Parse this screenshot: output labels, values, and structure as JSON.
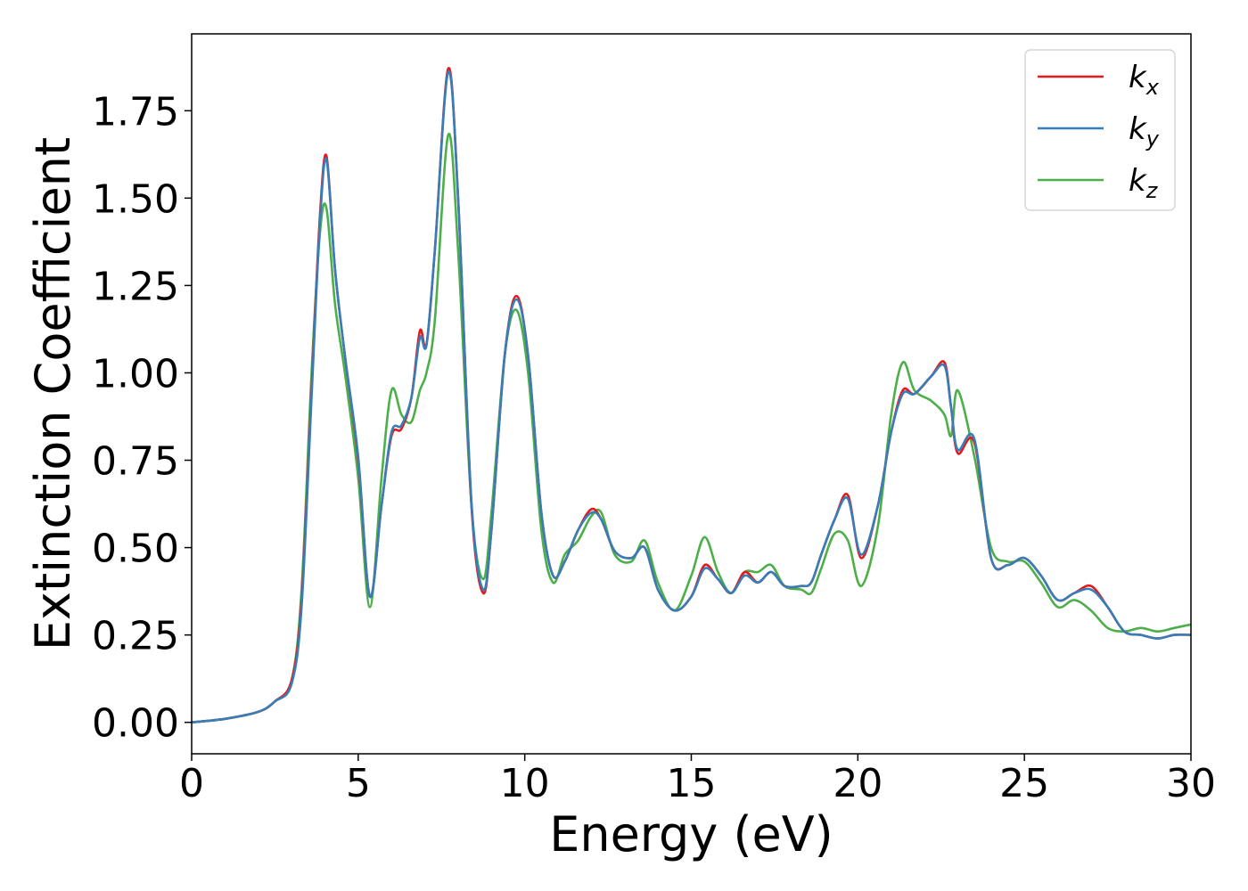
{
  "chart_data": {
    "type": "line",
    "xlabel": "Energy (eV)",
    "ylabel": "Extinction Coefficient",
    "xlim": [
      0,
      30
    ],
    "ylim": [
      -0.09,
      1.97
    ],
    "xticks": [
      0,
      5,
      10,
      15,
      20,
      25,
      30
    ],
    "xtick_labels": [
      "0",
      "5",
      "10",
      "15",
      "20",
      "25",
      "30"
    ],
    "yticks": [
      0.0,
      0.25,
      0.5,
      0.75,
      1.0,
      1.25,
      1.5,
      1.75
    ],
    "ytick_labels": [
      "0.00",
      "0.25",
      "0.50",
      "0.75",
      "1.00",
      "1.25",
      "1.50",
      "1.75"
    ],
    "grid": false,
    "legend_position": "top-right",
    "series": [
      {
        "name": "k_x",
        "label_main": "k",
        "label_sub": "x",
        "color": "#e41a1c",
        "x": [
          0,
          1,
          2,
          2.5,
          3,
          3.3,
          3.6,
          3.85,
          4.05,
          4.3,
          4.6,
          5.0,
          5.35,
          5.7,
          6.0,
          6.3,
          6.6,
          6.85,
          7.05,
          7.3,
          7.7,
          8.0,
          8.4,
          8.75,
          9.0,
          9.4,
          9.75,
          10.1,
          10.5,
          10.85,
          11.2,
          11.6,
          12.0,
          12.3,
          12.7,
          13.2,
          13.6,
          14.0,
          14.5,
          15.0,
          15.4,
          15.8,
          16.2,
          16.6,
          17.0,
          17.4,
          17.8,
          18.3,
          18.6,
          18.9,
          19.3,
          19.7,
          20.1,
          20.6,
          21.0,
          21.35,
          21.7,
          22.2,
          22.6,
          22.8,
          23.0,
          23.5,
          24.0,
          24.5,
          25.0,
          25.5,
          26.0,
          26.5,
          27.0,
          27.5,
          28.0,
          28.5,
          29.0,
          29.5,
          30.0
        ],
        "y": [
          0.0,
          0.01,
          0.03,
          0.06,
          0.12,
          0.35,
          0.95,
          1.45,
          1.62,
          1.3,
          1.05,
          0.75,
          0.36,
          0.62,
          0.82,
          0.84,
          0.93,
          1.12,
          1.08,
          1.35,
          1.87,
          1.5,
          0.62,
          0.37,
          0.55,
          1.05,
          1.22,
          1.05,
          0.6,
          0.42,
          0.46,
          0.55,
          0.61,
          0.58,
          0.49,
          0.47,
          0.5,
          0.38,
          0.32,
          0.36,
          0.45,
          0.41,
          0.37,
          0.43,
          0.4,
          0.43,
          0.39,
          0.39,
          0.4,
          0.48,
          0.58,
          0.65,
          0.47,
          0.62,
          0.83,
          0.95,
          0.94,
          0.99,
          1.03,
          0.9,
          0.77,
          0.8,
          0.47,
          0.45,
          0.47,
          0.42,
          0.35,
          0.37,
          0.39,
          0.33,
          0.26,
          0.25,
          0.24,
          0.25,
          0.25
        ]
      },
      {
        "name": "k_y",
        "label_main": "k",
        "label_sub": "y",
        "color": "#377eb8",
        "x": [
          0,
          1,
          2,
          2.5,
          3,
          3.3,
          3.6,
          3.85,
          4.05,
          4.3,
          4.6,
          5.0,
          5.35,
          5.7,
          6.0,
          6.3,
          6.6,
          6.85,
          7.05,
          7.3,
          7.7,
          8.0,
          8.4,
          8.75,
          9.0,
          9.4,
          9.75,
          10.1,
          10.5,
          10.85,
          11.2,
          11.6,
          12.0,
          12.3,
          12.7,
          13.2,
          13.6,
          14.0,
          14.5,
          15.0,
          15.4,
          15.8,
          16.2,
          16.6,
          17.0,
          17.4,
          17.8,
          18.3,
          18.6,
          18.9,
          19.3,
          19.7,
          20.1,
          20.6,
          21.0,
          21.35,
          21.7,
          22.2,
          22.6,
          22.8,
          23.0,
          23.5,
          24.0,
          24.5,
          25.0,
          25.5,
          26.0,
          26.5,
          27.0,
          27.5,
          28.0,
          28.5,
          29.0,
          29.5,
          30.0
        ],
        "y": [
          0.0,
          0.01,
          0.03,
          0.06,
          0.11,
          0.33,
          0.93,
          1.43,
          1.61,
          1.3,
          1.05,
          0.76,
          0.36,
          0.62,
          0.83,
          0.85,
          0.93,
          1.1,
          1.08,
          1.35,
          1.86,
          1.5,
          0.63,
          0.38,
          0.55,
          1.05,
          1.21,
          1.05,
          0.6,
          0.42,
          0.46,
          0.55,
          0.6,
          0.58,
          0.49,
          0.47,
          0.5,
          0.38,
          0.32,
          0.36,
          0.44,
          0.41,
          0.37,
          0.42,
          0.4,
          0.43,
          0.39,
          0.39,
          0.4,
          0.48,
          0.58,
          0.64,
          0.48,
          0.62,
          0.83,
          0.94,
          0.94,
          0.99,
          1.02,
          0.9,
          0.78,
          0.81,
          0.47,
          0.45,
          0.47,
          0.42,
          0.35,
          0.37,
          0.38,
          0.33,
          0.26,
          0.25,
          0.24,
          0.25,
          0.25
        ]
      },
      {
        "name": "k_z",
        "label_main": "k",
        "label_sub": "z",
        "color": "#4daf4a",
        "x": [
          0,
          1,
          2,
          2.5,
          3,
          3.3,
          3.6,
          3.85,
          4.05,
          4.3,
          4.6,
          5.0,
          5.35,
          5.7,
          6.0,
          6.3,
          6.6,
          6.85,
          7.05,
          7.3,
          7.7,
          8.0,
          8.4,
          8.75,
          9.0,
          9.4,
          9.75,
          10.1,
          10.5,
          10.85,
          11.2,
          11.6,
          12.0,
          12.3,
          12.7,
          13.2,
          13.6,
          14.0,
          14.5,
          15.0,
          15.4,
          15.8,
          16.2,
          16.6,
          17.0,
          17.4,
          17.8,
          18.3,
          18.6,
          18.9,
          19.3,
          19.7,
          20.1,
          20.6,
          21.0,
          21.35,
          21.7,
          22.2,
          22.6,
          22.8,
          23.0,
          23.5,
          24.0,
          24.5,
          25.0,
          25.5,
          26.0,
          26.5,
          27.0,
          27.5,
          28.0,
          28.5,
          29.0,
          29.5,
          30.0
        ],
        "y": [
          0.0,
          0.01,
          0.03,
          0.06,
          0.12,
          0.38,
          1.0,
          1.4,
          1.47,
          1.2,
          1.0,
          0.7,
          0.33,
          0.7,
          0.95,
          0.88,
          0.86,
          0.95,
          1.0,
          1.15,
          1.68,
          1.35,
          0.62,
          0.41,
          0.6,
          1.05,
          1.18,
          1.0,
          0.55,
          0.4,
          0.48,
          0.52,
          0.59,
          0.6,
          0.48,
          0.46,
          0.52,
          0.4,
          0.32,
          0.42,
          0.53,
          0.43,
          0.37,
          0.43,
          0.43,
          0.45,
          0.39,
          0.38,
          0.37,
          0.44,
          0.54,
          0.52,
          0.39,
          0.56,
          0.88,
          1.03,
          0.95,
          0.92,
          0.88,
          0.82,
          0.95,
          0.76,
          0.5,
          0.46,
          0.46,
          0.4,
          0.33,
          0.35,
          0.32,
          0.27,
          0.26,
          0.27,
          0.26,
          0.27,
          0.28
        ]
      }
    ]
  }
}
